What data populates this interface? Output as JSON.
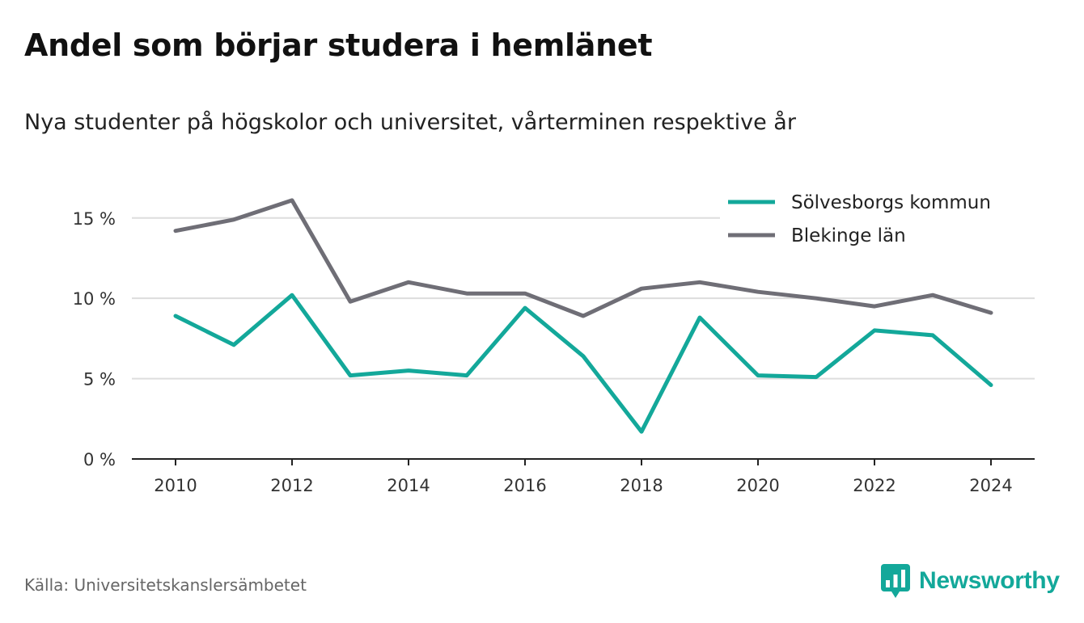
{
  "header": {
    "title": "Andel som börjar studera i hemlänet",
    "subtitle": "Nya studenter på högskolor och universitet, vårterminen respektive år"
  },
  "footer": {
    "source": "Källa: Universitetskanslersämbetet",
    "brand": "Newsworthy",
    "brand_icon": "bar-chart-speech-bubble-icon"
  },
  "colors": {
    "solvesborg": "#13a89a",
    "blekinge": "#6f6e76",
    "grid": "#dddddd",
    "axis": "#222222",
    "brand": "#13a89a"
  },
  "chart_data": {
    "type": "line",
    "title": "Andel som börjar studera i hemlänet",
    "subtitle": "Nya studenter på högskolor och universitet, vårterminen respektive år",
    "x": [
      2010,
      2011,
      2012,
      2013,
      2014,
      2015,
      2016,
      2017,
      2018,
      2019,
      2020,
      2021,
      2022,
      2023,
      2024
    ],
    "series": [
      {
        "name": "Sölvesborgs kommun",
        "color": "#13a89a",
        "values": [
          8.9,
          7.1,
          10.2,
          5.2,
          5.5,
          5.2,
          9.4,
          6.4,
          1.7,
          8.8,
          5.2,
          5.1,
          8.0,
          7.7,
          4.6
        ]
      },
      {
        "name": "Blekinge län",
        "color": "#6f6e76",
        "values": [
          14.2,
          14.9,
          16.1,
          9.8,
          11.0,
          10.3,
          10.3,
          8.9,
          10.6,
          11.0,
          10.4,
          10.0,
          9.5,
          10.2,
          9.1
        ]
      }
    ],
    "x_ticks": [
      2010,
      2012,
      2014,
      2016,
      2018,
      2020,
      2022,
      2024
    ],
    "x_tick_labels": [
      "2010",
      "2012",
      "2014",
      "2016",
      "2018",
      "2020",
      "2022",
      "2024"
    ],
    "y_ticks": [
      0,
      5,
      10,
      15
    ],
    "y_tick_labels": [
      "0 %",
      "5 %",
      "10 %",
      "15 %"
    ],
    "xlim": [
      2009.25,
      2024.75
    ],
    "ylim": [
      0,
      17
    ],
    "xlabel": "",
    "ylabel": "",
    "grid": true,
    "legend_position": "top-right"
  }
}
